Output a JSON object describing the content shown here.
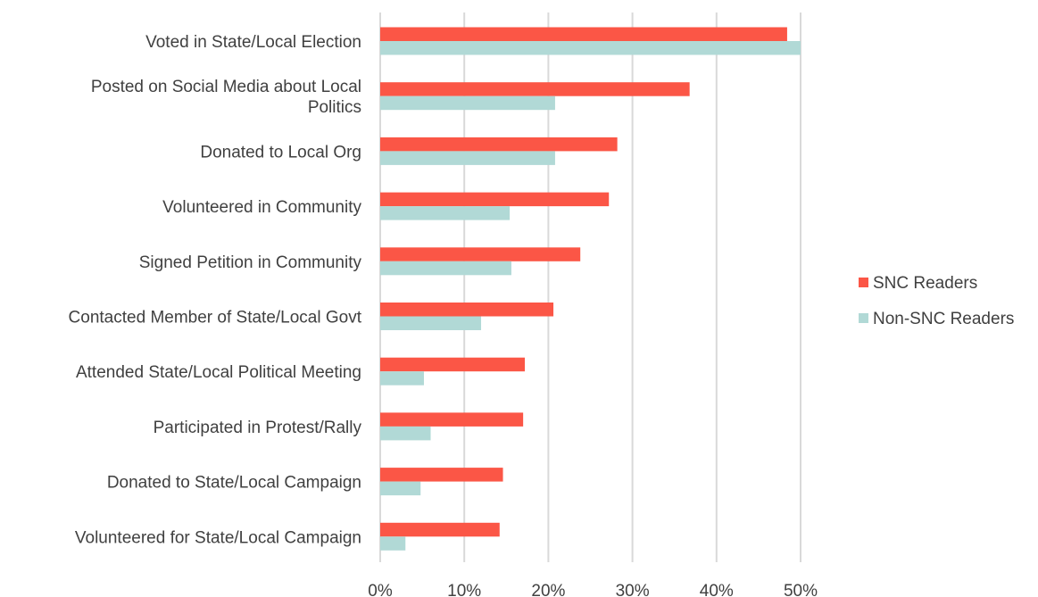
{
  "chart_data": {
    "type": "bar",
    "orientation": "horizontal",
    "categories": [
      [
        "Voted in State/Local Election"
      ],
      [
        "Posted on Social Media about Local",
        "Politics"
      ],
      [
        "Donated to Local Org"
      ],
      [
        "Volunteered in Community"
      ],
      [
        "Signed Petition in Community"
      ],
      [
        "Contacted Member of State/Local Govt"
      ],
      [
        "Attended State/Local Political Meeting"
      ],
      [
        "Participated in Protest/Rally"
      ],
      [
        "Donated to State/Local Campaign"
      ],
      [
        "Volunteered for State/Local Campaign"
      ]
    ],
    "series": [
      {
        "name": "SNC Readers",
        "color": "#fb5646",
        "values": [
          48.4,
          36.8,
          28.2,
          27.2,
          23.8,
          20.6,
          17.2,
          17.0,
          14.6,
          14.2
        ]
      },
      {
        "name": "Non-SNC Readers",
        "color": "#b1d9d6",
        "values": [
          50.0,
          20.8,
          20.8,
          15.4,
          15.6,
          12.0,
          5.2,
          6.0,
          4.8,
          3.0
        ]
      }
    ],
    "xlim": [
      0,
      50
    ],
    "xticks": [
      0,
      10,
      20,
      30,
      40,
      50
    ],
    "xtick_labels": [
      "0%",
      "10%",
      "20%",
      "30%",
      "40%",
      "50%"
    ],
    "grid": "vertical",
    "legend": "right",
    "title": "",
    "xlabel": "",
    "ylabel": ""
  }
}
